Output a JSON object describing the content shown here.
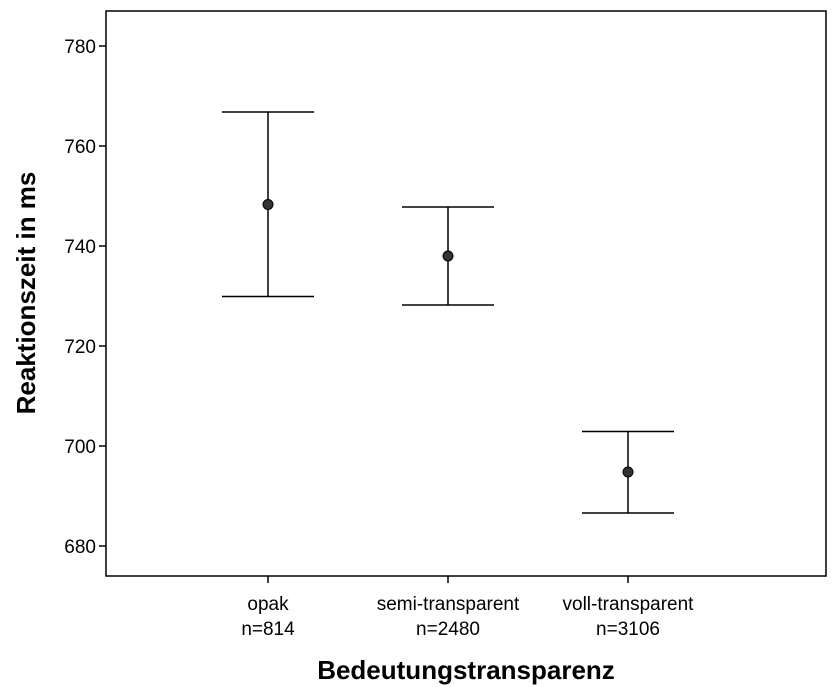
{
  "chart_data": {
    "type": "errorbar",
    "title": "",
    "xlabel": "Bedeutungstransparenz",
    "ylabel": "Reaktionszeit in ms",
    "ylim": [
      674,
      787
    ],
    "yticks": [
      680,
      700,
      720,
      740,
      760,
      780
    ],
    "grid": false,
    "categories": [
      {
        "label": "opak",
        "n_label": "n=814"
      },
      {
        "label": "semi-transparent",
        "n_label": "n=2480"
      },
      {
        "label": "voll-transparent",
        "n_label": "n=3106"
      }
    ],
    "points": [
      {
        "category": "opak",
        "mean": 748.3,
        "lower": 729.9,
        "upper": 766.8
      },
      {
        "category": "semi-transparent",
        "mean": 738.0,
        "lower": 728.2,
        "upper": 747.8
      },
      {
        "category": "voll-transparent",
        "mean": 694.8,
        "lower": 686.6,
        "upper": 702.9
      }
    ],
    "colors": {
      "marker": "#333333",
      "line": "#000000"
    }
  }
}
